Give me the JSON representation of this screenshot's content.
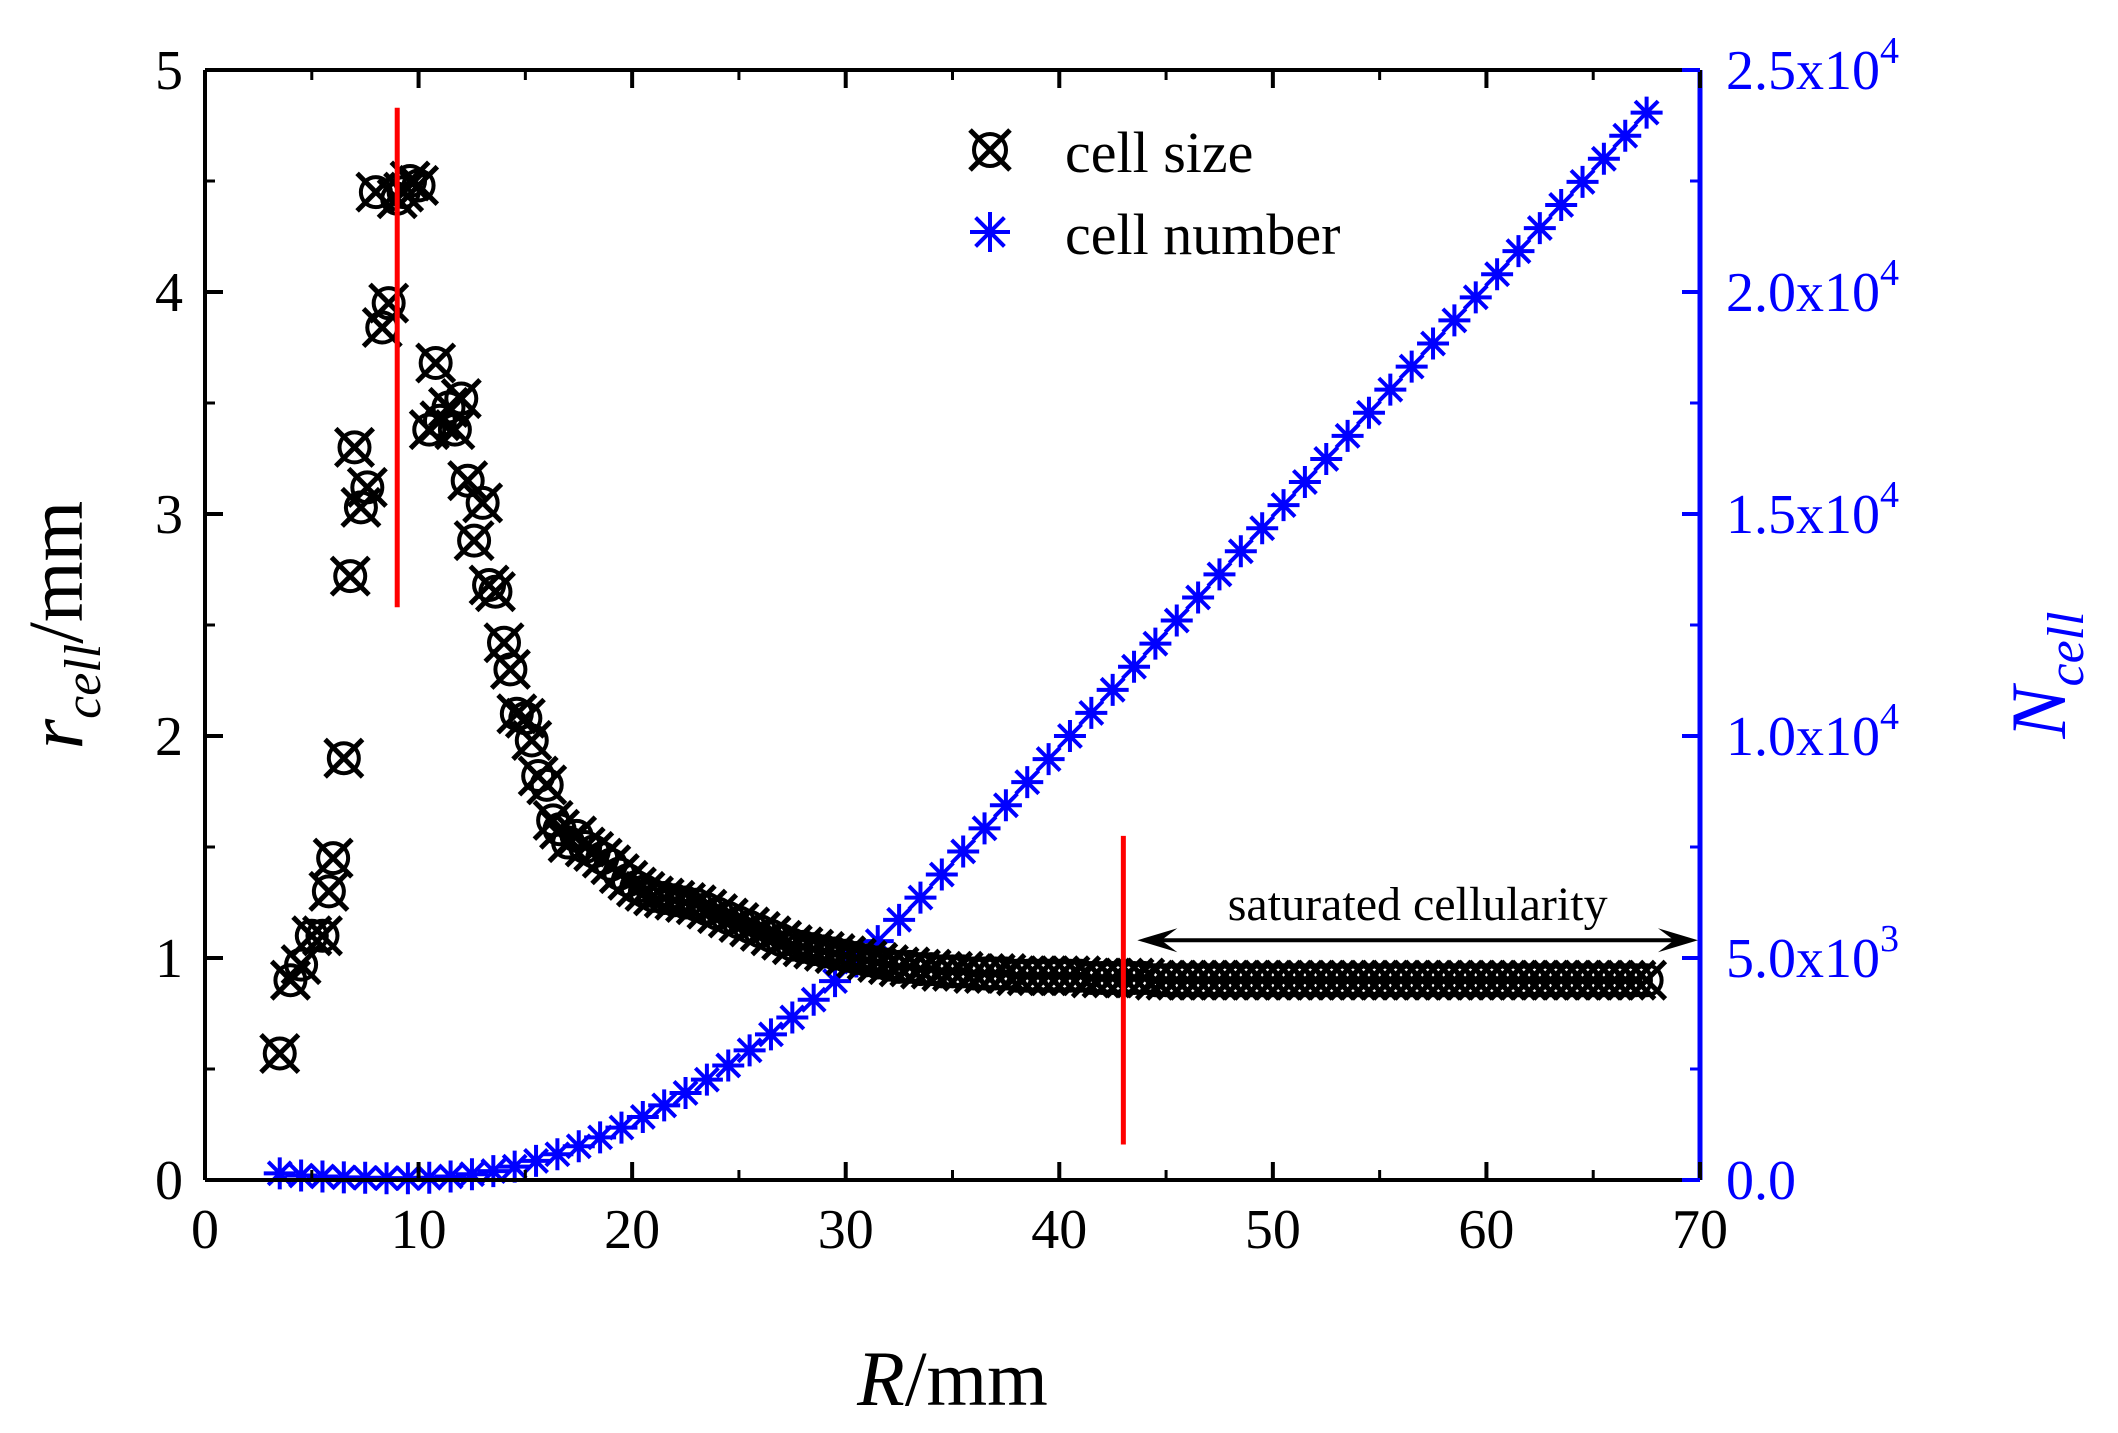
{
  "chart_data": {
    "type": "scatter",
    "title": "",
    "xlabel": {
      "main": "R",
      "unit": "/mm"
    },
    "ylabel_left": {
      "main": "r",
      "sub": "cell",
      "unit": "/mm"
    },
    "ylabel_right": {
      "main": "N",
      "sub": "cell"
    },
    "xlim": [
      0,
      70
    ],
    "ylim_left": [
      0,
      5
    ],
    "ylim_right": [
      0,
      25000
    ],
    "x_ticks": [
      "0",
      "10",
      "20",
      "30",
      "40",
      "50",
      "60",
      "70"
    ],
    "y_left_ticks": [
      "0",
      "1",
      "2",
      "3",
      "4",
      "5"
    ],
    "y_right_ticks": [
      {
        "mantissa": "0.0",
        "exp": ""
      },
      {
        "mantissa": "5.0x10",
        "exp": "3"
      },
      {
        "mantissa": "1.0x10",
        "exp": "4"
      },
      {
        "mantissa": "1.5x10",
        "exp": "4"
      },
      {
        "mantissa": "2.0x10",
        "exp": "4"
      },
      {
        "mantissa": "2.5x10",
        "exp": "4"
      }
    ],
    "grid": false,
    "legend_position": "top-right",
    "colors": {
      "cell_size": "#000000",
      "cell_number": "#0000ff",
      "marker_lines": "#ff0000",
      "arrow": "#000000"
    },
    "series": [
      {
        "name": "cell size",
        "axis": "left",
        "marker": "circle-x",
        "x": [
          3.5,
          4.0,
          4.5,
          5.0,
          5.5,
          5.8,
          6.0,
          6.5,
          6.8,
          7.0,
          7.3,
          7.6,
          8.0,
          8.3,
          8.6,
          9.0,
          9.3,
          9.6,
          10.0,
          10.5,
          10.8,
          11.0,
          11.4,
          11.7,
          12.0,
          12.3,
          12.6,
          13.0,
          13.3,
          13.6,
          14.0,
          14.3,
          14.6,
          15.0,
          15.3,
          15.6,
          16.0,
          16.3,
          16.6,
          17.0,
          17.4,
          17.8,
          18.2,
          18.6,
          19.0,
          19.4,
          19.8,
          20.2,
          20.6,
          21.0,
          21.5,
          22.0,
          22.5,
          23.0,
          23.5,
          24.0,
          24.5,
          25.0,
          25.5,
          26.0,
          26.5,
          27.0,
          27.5,
          28.0,
          28.5,
          29.0,
          29.5,
          30.0,
          30.5,
          31.0,
          31.5,
          32.0,
          32.5,
          33.0,
          33.5,
          34.0,
          34.5,
          35.0,
          35.5,
          36.0,
          36.5,
          37.0,
          37.5,
          38.0,
          38.5,
          39.0,
          39.5,
          40.0,
          40.5,
          41.0,
          41.5,
          42.0,
          42.5,
          43.0,
          43.5,
          44.0,
          44.5,
          45.0,
          45.5,
          46.0,
          46.5,
          47.0,
          47.5,
          48.0,
          48.5,
          49.0,
          49.5,
          50.0,
          50.5,
          51.0,
          51.5,
          52.0,
          52.5,
          53.0,
          53.5,
          54.0,
          54.5,
          55.0,
          55.5,
          56.0,
          56.5,
          57.0,
          57.5,
          58.0,
          58.5,
          59.0,
          59.5,
          60.0,
          60.5,
          61.0,
          61.5,
          62.0,
          62.5,
          63.0,
          63.5,
          64.0,
          64.5,
          65.0,
          65.5,
          66.0,
          66.5,
          67.0,
          67.5
        ],
        "y": [
          0.57,
          0.9,
          0.97,
          1.1,
          1.1,
          1.3,
          1.45,
          1.9,
          2.72,
          3.3,
          3.03,
          3.12,
          4.45,
          3.84,
          3.95,
          4.42,
          4.45,
          4.5,
          4.48,
          3.38,
          3.68,
          3.42,
          3.48,
          3.38,
          3.52,
          3.15,
          2.88,
          3.05,
          2.68,
          2.65,
          2.42,
          2.3,
          2.1,
          2.08,
          1.98,
          1.82,
          1.78,
          1.62,
          1.58,
          1.52,
          1.55,
          1.5,
          1.48,
          1.45,
          1.42,
          1.38,
          1.35,
          1.32,
          1.3,
          1.28,
          1.27,
          1.26,
          1.25,
          1.24,
          1.22,
          1.2,
          1.18,
          1.16,
          1.14,
          1.12,
          1.1,
          1.08,
          1.06,
          1.05,
          1.04,
          1.03,
          1.02,
          1.01,
          1.0,
          0.99,
          0.98,
          0.97,
          0.96,
          0.96,
          0.95,
          0.95,
          0.94,
          0.94,
          0.94,
          0.93,
          0.93,
          0.93,
          0.93,
          0.92,
          0.92,
          0.92,
          0.92,
          0.92,
          0.92,
          0.92,
          0.91,
          0.91,
          0.91,
          0.91,
          0.91,
          0.91,
          0.9,
          0.9,
          0.9,
          0.9,
          0.9,
          0.9,
          0.9,
          0.9,
          0.9,
          0.9,
          0.9,
          0.9,
          0.9,
          0.9,
          0.9,
          0.9,
          0.9,
          0.9,
          0.9,
          0.9,
          0.9,
          0.9,
          0.9,
          0.9,
          0.9,
          0.9,
          0.9,
          0.9,
          0.9,
          0.9,
          0.9,
          0.9,
          0.9,
          0.9,
          0.9,
          0.9,
          0.9,
          0.9,
          0.9,
          0.9,
          0.9,
          0.9,
          0.9,
          0.9,
          0.9,
          0.9,
          0.9
        ]
      },
      {
        "name": "cell number",
        "axis": "right",
        "marker": "asterisk",
        "x": [
          3.5,
          4.5,
          5.5,
          6.5,
          7.5,
          8.5,
          9.5,
          10.5,
          11.5,
          12.5,
          13.5,
          14.5,
          15.5,
          16.5,
          17.5,
          18.5,
          19.5,
          20.5,
          21.5,
          22.5,
          23.5,
          24.5,
          25.5,
          26.5,
          27.5,
          28.5,
          29.5,
          30.5,
          31.5,
          32.5,
          33.5,
          34.5,
          35.5,
          36.5,
          37.5,
          38.5,
          39.5,
          40.5,
          41.5,
          42.5,
          43.5,
          44.5,
          45.5,
          46.5,
          47.5,
          48.5,
          49.5,
          50.5,
          51.5,
          52.5,
          53.5,
          54.5,
          55.5,
          56.5,
          57.5,
          58.5,
          59.5,
          60.5,
          61.5,
          62.5,
          63.5,
          64.5,
          65.5,
          66.5,
          67.5
        ],
        "y": [
          150,
          100,
          80,
          60,
          50,
          40,
          40,
          50,
          80,
          130,
          200,
          300,
          430,
          580,
          760,
          960,
          1180,
          1420,
          1680,
          1960,
          2260,
          2580,
          2920,
          3280,
          3660,
          4060,
          4480,
          4920,
          5380,
          5860,
          6360,
          6880,
          7400,
          7920,
          8440,
          8960,
          9480,
          10000,
          10520,
          11040,
          11560,
          12080,
          12600,
          13120,
          13640,
          14160,
          14680,
          15200,
          15720,
          16240,
          16760,
          17280,
          17800,
          18320,
          18840,
          19360,
          19880,
          20400,
          20920,
          21440,
          21960,
          22480,
          23000,
          23520,
          24040
        ]
      }
    ],
    "annotations": {
      "vlines": [
        {
          "x": 9.0,
          "y_from": 2.58,
          "y_to": 4.83
        },
        {
          "x": 43.0,
          "y_from": 0.16,
          "y_to": 1.55
        }
      ],
      "arrow": {
        "x_from": 43.0,
        "x_to": 70.0,
        "y": 1.08,
        "text": "saturated cellularity"
      }
    }
  }
}
